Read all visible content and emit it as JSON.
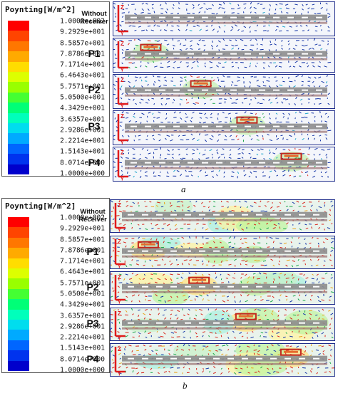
{
  "legend": {
    "title": "Poynting[W/m^2]",
    "values": [
      "1.0000e+002",
      "9.2929e+001",
      "8.5857e+001",
      "7.8786e+001",
      "7.1714e+001",
      "6.4643e+001",
      "5.7571e+001",
      "5.0500e+001",
      "4.3429e+001",
      "3.6357e+001",
      "2.9286e+001",
      "2.2214e+001",
      "1.5143e+001",
      "8.0714e+000",
      "1.0000e+000"
    ],
    "colors": [
      "#ff0000",
      "#ff4400",
      "#ff7700",
      "#ffaa00",
      "#ffdd00",
      "#ddff00",
      "#99ff00",
      "#44ff33",
      "#00ff77",
      "#00ffbb",
      "#00ddee",
      "#00aaff",
      "#0066ff",
      "#0033ee",
      "#0000cc"
    ]
  },
  "figures": [
    {
      "caption": "a",
      "rows": [
        {
          "label": "Without Receiver",
          "receiver": null
        },
        {
          "label": "P1",
          "receiver": 0.12
        },
        {
          "label": "P2",
          "receiver": 0.38
        },
        {
          "label": "P3",
          "receiver": 0.62
        },
        {
          "label": "P4",
          "receiver": 0.85
        }
      ]
    },
    {
      "caption": "b",
      "rows": [
        {
          "label": "Without Receiver",
          "receiver": null
        },
        {
          "label": "P1",
          "receiver": 0.12
        },
        {
          "label": "P2",
          "receiver": 0.38
        },
        {
          "label": "P3",
          "receiver": 0.62
        },
        {
          "label": "P4",
          "receiver": 0.85
        }
      ]
    }
  ],
  "axis_labels": {
    "z": "Z",
    "y": "Y"
  }
}
